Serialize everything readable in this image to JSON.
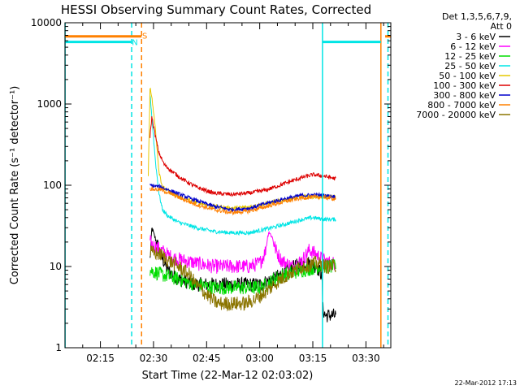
{
  "chart_data": {
    "type": "line",
    "title": "HESSI Observing Summary Count Rates, Corrected",
    "xlabel": "Start Time (22-Mar-12 02:03:02)",
    "ylabel": "Corrected Count Rate (s⁻¹ detector⁻¹)",
    "x_unit": "minutes after 02:03:02 UT",
    "xlim": [
      2.97,
      95.0
    ],
    "x_ticks": [
      {
        "value": 12.97,
        "label": "02:15"
      },
      {
        "value": 27.97,
        "label": "02:30"
      },
      {
        "value": 42.97,
        "label": "02:45"
      },
      {
        "value": 57.97,
        "label": "03:00"
      },
      {
        "value": 72.97,
        "label": "03:15"
      },
      {
        "value": 87.97,
        "label": "03:30"
      }
    ],
    "y_scale": "log",
    "ylim": [
      1,
      10000
    ],
    "y_ticks": [
      {
        "value": 1,
        "label": "1"
      },
      {
        "value": 10,
        "label": "10"
      },
      {
        "value": 100,
        "label": "100"
      },
      {
        "value": 1000,
        "label": "1000"
      },
      {
        "value": 10000,
        "label": "10000"
      }
    ],
    "legend": {
      "position": "right",
      "header": [
        "Det 1,3,5,6,7,9,",
        "Att 0"
      ],
      "entries": [
        {
          "name": "3 - 6 keV",
          "color": "#000000"
        },
        {
          "name": "6 - 12 keV",
          "color": "#ff00ff"
        },
        {
          "name": "12 - 25 keV",
          "color": "#00dd00"
        },
        {
          "name": "25 - 50 keV",
          "color": "#00e5e5"
        },
        {
          "name": "50 - 100 keV",
          "color": "#e6c800"
        },
        {
          "name": "100 - 300 keV",
          "color": "#dd0000"
        },
        {
          "name": "300 - 800 keV",
          "color": "#0000cc"
        },
        {
          "name": "800 - 7000 keV",
          "color": "#ff8000"
        },
        {
          "name": "7000 - 20000 keV",
          "color": "#8b7500"
        }
      ]
    },
    "series": [
      {
        "name": "3 - 6 keV",
        "color": "#000000",
        "x": [
          27.0,
          27.5,
          28.5,
          30,
          32,
          35,
          40,
          45,
          50,
          55,
          58,
          60,
          62,
          64,
          66,
          68,
          70,
          72,
          74,
          75.5,
          75.8,
          76.5,
          77.5,
          78.5,
          79.5
        ],
        "y": [
          12,
          30,
          22,
          14,
          9,
          7,
          6,
          6,
          6,
          6,
          6,
          6.5,
          7,
          8,
          9,
          10,
          11,
          11,
          10,
          8,
          3,
          2.5,
          2.5,
          2.5,
          2.5
        ]
      },
      {
        "name": "6 - 12 keV",
        "color": "#ff00ff",
        "x": [
          27.0,
          28,
          30,
          33,
          36,
          40,
          45,
          50,
          55,
          58,
          59.5,
          60.5,
          61.5,
          62.5,
          64,
          67,
          70,
          72,
          74,
          76,
          78,
          79.5
        ],
        "y": [
          20,
          18,
          16,
          13,
          12,
          11,
          10,
          10,
          10,
          11,
          15,
          27,
          23,
          16,
          12,
          10,
          12,
          16,
          14,
          12,
          11,
          11
        ]
      },
      {
        "name": "12 - 25 keV",
        "color": "#00dd00",
        "x": [
          27.0,
          30,
          35,
          40,
          45,
          50,
          55,
          58,
          60,
          62,
          65,
          70,
          75,
          78,
          79.5
        ],
        "y": [
          9,
          8,
          7,
          6,
          5.5,
          5.5,
          5.5,
          5.5,
          6,
          7,
          8,
          9,
          10,
          10,
          10
        ]
      },
      {
        "name": "25 - 50 keV",
        "color": "#00e5e5",
        "x": [
          27.0,
          27.5,
          28.5,
          29.5,
          30.5,
          32,
          35,
          40,
          45,
          50,
          55,
          60,
          65,
          70,
          73,
          76,
          79.5
        ],
        "y": [
          1300,
          700,
          200,
          80,
          50,
          42,
          35,
          30,
          27,
          26,
          26,
          29,
          33,
          38,
          40,
          38,
          38
        ]
      },
      {
        "name": "50 - 100 keV",
        "color": "#e6c800",
        "x": [
          26.5,
          27.0,
          27.5,
          28.5,
          29.5,
          30.5,
          32,
          35,
          40,
          45,
          50,
          55,
          60,
          65,
          70,
          75,
          79.5
        ],
        "y": [
          130,
          1700,
          1200,
          500,
          150,
          95,
          85,
          72,
          62,
          55,
          52,
          54,
          60,
          66,
          72,
          72,
          72
        ]
      },
      {
        "name": "100 - 300 keV",
        "color": "#dd0000",
        "x": [
          27.0,
          27.5,
          28.5,
          29.5,
          31,
          33,
          36,
          40,
          45,
          50,
          55,
          60,
          65,
          70,
          73,
          76,
          79.5
        ],
        "y": [
          400,
          700,
          400,
          250,
          180,
          150,
          120,
          95,
          80,
          77,
          80,
          88,
          105,
          125,
          135,
          130,
          120
        ]
      },
      {
        "name": "300 - 800 keV",
        "color": "#0000cc",
        "x": [
          27.0,
          30,
          33,
          36,
          40,
          45,
          50,
          55,
          60,
          65,
          70,
          75,
          79.5
        ],
        "y": [
          100,
          95,
          85,
          75,
          65,
          55,
          50,
          52,
          60,
          68,
          75,
          76,
          72
        ]
      },
      {
        "name": "800 - 7000 keV",
        "color": "#ff8000",
        "x": [
          27.0,
          30,
          33,
          36,
          40,
          45,
          50,
          55,
          60,
          65,
          70,
          75,
          79.5
        ],
        "y": [
          90,
          88,
          78,
          68,
          58,
          50,
          46,
          48,
          55,
          63,
          70,
          72,
          68
        ]
      },
      {
        "name": "7000 - 20000 keV",
        "color": "#8b7500",
        "x": [
          27.0,
          30,
          32,
          35,
          38,
          40,
          43,
          46,
          50,
          54,
          57,
          60,
          63,
          66,
          70,
          74,
          77,
          79.5
        ],
        "y": [
          15,
          14,
          12,
          10,
          8,
          6,
          4.5,
          3.5,
          3.5,
          3.5,
          4,
          5,
          6.5,
          8,
          10,
          11,
          10,
          10
        ]
      }
    ],
    "intervals": [
      {
        "color": "#00e5e5",
        "style": "solid",
        "x": 3.0
      },
      {
        "color": "#00e5e5",
        "style": "dashed",
        "x": 21.8
      },
      {
        "color": "#ff8000",
        "style": "dashed",
        "x": 24.6
      },
      {
        "color": "#00e5e5",
        "style": "solid",
        "x": 75.7
      },
      {
        "color": "#ff8000",
        "style": "solid",
        "x": 92.2
      },
      {
        "color": "#00e5e5",
        "style": "dashed",
        "x": 94.2
      }
    ],
    "markers": [
      {
        "label": "S",
        "color": "#ff8000",
        "x": 25.5,
        "y": 7000
      },
      {
        "label": "N",
        "color": "#00e5e5",
        "x": 22.7,
        "y": 5800
      }
    ],
    "flag_bars": [
      {
        "color": "#ff8000",
        "x": [
          2.97,
          24.6
        ],
        "y": 6800
      },
      {
        "color": "#00e5e5",
        "x": [
          2.97,
          21.8
        ],
        "y": 5800
      },
      {
        "color": "#00e5e5",
        "x": [
          75.7,
          92.2
        ],
        "y": 5800
      },
      {
        "color": "#ff8000",
        "x": [
          93.4,
          95.0
        ],
        "y": 6800
      }
    ]
  },
  "footer": {
    "date_stamp": "22-Mar-2012 17:13"
  }
}
